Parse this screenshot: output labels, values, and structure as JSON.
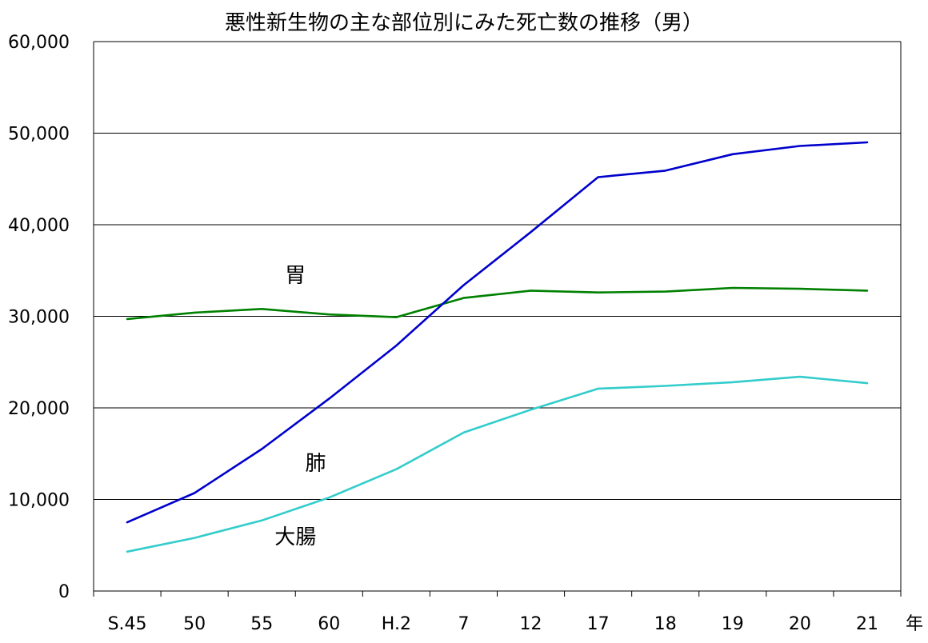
{
  "chart_data": {
    "type": "line",
    "title": "悪性新生物の主な部位別にみた死亡数の推移（男）",
    "x_unit": "年",
    "categories": [
      "S.45",
      "50",
      "55",
      "60",
      "H.2",
      "7",
      "12",
      "17",
      "18",
      "19",
      "20",
      "21"
    ],
    "ylim": [
      0,
      60000
    ],
    "yticks": [
      "0",
      "10,000",
      "20,000",
      "30,000",
      "40,000",
      "50,000",
      "60,000"
    ],
    "grid": true,
    "series": [
      {
        "name": "胃",
        "color": "#008000",
        "values": [
          29700,
          30400,
          30800,
          30200,
          29900,
          32000,
          32800,
          32600,
          32700,
          33100,
          33000,
          32800
        ]
      },
      {
        "name": "肺",
        "color": "#0000cc",
        "values": [
          7500,
          10700,
          15500,
          21000,
          26800,
          33400,
          39200,
          45200,
          45900,
          47700,
          48600,
          49000
        ]
      },
      {
        "name": "大腸",
        "color": "#33cccc",
        "values": [
          4300,
          5800,
          7700,
          10200,
          13300,
          17300,
          19800,
          22100,
          22400,
          22800,
          23400,
          22700
        ]
      }
    ]
  }
}
